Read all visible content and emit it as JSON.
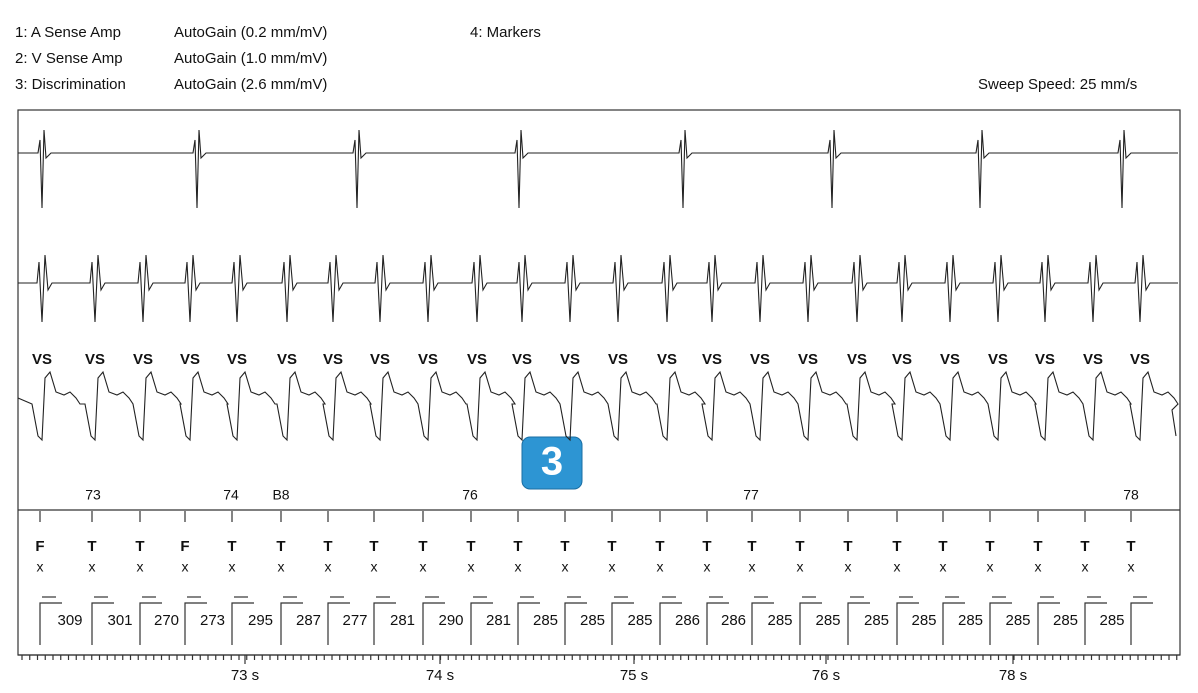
{
  "header": {
    "channels": [
      {
        "label": "1:  A Sense Amp",
        "gain": "AutoGain (0.2 mm/mV)"
      },
      {
        "label": "2:  V Sense Amp",
        "gain": "AutoGain (1.0 mm/mV)"
      },
      {
        "label": "3:  Discrimination",
        "gain": "AutoGain (2.6 mm/mV)"
      }
    ],
    "markers_channel": "4:  Markers",
    "sweep_speed": "Sweep Speed: 25 mm/s"
  },
  "strip": {
    "vs_labels": [
      "VS",
      "VS",
      "VS",
      "VS",
      "VS",
      "VS",
      "VS",
      "VS",
      "VS",
      "VS",
      "VS",
      "VS",
      "VS",
      "VS",
      "VS",
      "VS",
      "VS",
      "VS",
      "VS",
      "VS",
      "VS",
      "VS",
      "VS",
      "VS"
    ],
    "event_numbers": [
      "73",
      "74",
      "B8",
      "76",
      "77",
      "78"
    ],
    "badge": "3",
    "classifications": [
      "F",
      "T",
      "T",
      "F",
      "T",
      "T",
      "T",
      "T",
      "T",
      "T",
      "T",
      "T",
      "T",
      "T",
      "T",
      "T",
      "T",
      "T",
      "T",
      "T",
      "T",
      "T",
      "T",
      "T"
    ],
    "flags": [
      "x",
      "x",
      "x",
      "x",
      "x",
      "x",
      "x",
      "x",
      "x",
      "x",
      "x",
      "x",
      "x",
      "x",
      "x",
      "x",
      "x",
      "x",
      "x",
      "x",
      "x",
      "x",
      "x",
      "x"
    ],
    "intervals": [
      "309",
      "301",
      "270",
      "273",
      "295",
      "287",
      "277",
      "281",
      "290",
      "281",
      "285",
      "285",
      "285",
      "286",
      "286",
      "285",
      "285",
      "285",
      "285",
      "285",
      "285",
      "285",
      "285"
    ],
    "time_labels": [
      "73 s",
      "74 s",
      "75 s",
      "76 s",
      "78 s"
    ]
  }
}
